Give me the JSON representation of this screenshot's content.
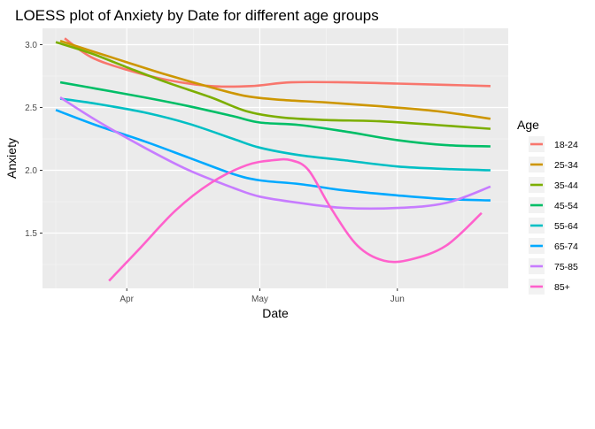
{
  "chart_data": {
    "type": "line",
    "title": "LOESS plot of Anxiety by Date for different age groups",
    "xlabel": "Date",
    "ylabel": "Anxiety",
    "x_ticks": [
      {
        "date": "2020-04-01",
        "label": "Apr"
      },
      {
        "date": "2020-05-01",
        "label": "May"
      },
      {
        "date": "2020-06-01",
        "label": "Jun"
      }
    ],
    "x_minor_ticks": [
      "2020-03-16",
      "2020-04-16",
      "2020-05-16",
      "2020-06-16"
    ],
    "xlim": [
      "2020-03-13",
      "2020-06-26"
    ],
    "y_ticks": [
      1.5,
      2.0,
      2.5,
      3.0
    ],
    "y_tick_labels": [
      "1.5",
      "2.0",
      "2.5",
      "3.0"
    ],
    "y_minor_ticks": [
      1.25,
      1.75,
      2.25,
      2.75
    ],
    "ylim": [
      1.06,
      3.13
    ],
    "grid": true,
    "legend_title": "Age",
    "legend_position": "right",
    "series": [
      {
        "name": "18-24",
        "color": "#F8766D",
        "x": [
          "2020-03-18",
          "2020-03-24",
          "2020-04-01",
          "2020-04-10",
          "2020-04-20",
          "2020-04-29",
          "2020-05-08",
          "2020-05-20",
          "2020-06-01",
          "2020-06-12",
          "2020-06-22"
        ],
        "y": [
          3.05,
          2.9,
          2.8,
          2.72,
          2.67,
          2.67,
          2.7,
          2.7,
          2.69,
          2.68,
          2.67
        ]
      },
      {
        "name": "25-34",
        "color": "#CD9600",
        "x": [
          "2020-03-17",
          "2020-03-24",
          "2020-04-01",
          "2020-04-10",
          "2020-04-20",
          "2020-04-28",
          "2020-05-06",
          "2020-05-16",
          "2020-05-28",
          "2020-06-10",
          "2020-06-22"
        ],
        "y": [
          3.03,
          2.95,
          2.86,
          2.76,
          2.66,
          2.59,
          2.56,
          2.54,
          2.51,
          2.47,
          2.41
        ]
      },
      {
        "name": "35-44",
        "color": "#7CAE00",
        "x": [
          "2020-03-16",
          "2020-03-24",
          "2020-04-01",
          "2020-04-10",
          "2020-04-20",
          "2020-04-28",
          "2020-05-06",
          "2020-05-16",
          "2020-05-28",
          "2020-06-10",
          "2020-06-22"
        ],
        "y": [
          3.02,
          2.93,
          2.82,
          2.7,
          2.58,
          2.47,
          2.42,
          2.4,
          2.39,
          2.36,
          2.33
        ]
      },
      {
        "name": "45-54",
        "color": "#00BE67",
        "x": [
          "2020-03-17",
          "2020-03-25",
          "2020-04-05",
          "2020-04-15",
          "2020-04-25",
          "2020-05-01",
          "2020-05-10",
          "2020-05-20",
          "2020-06-01",
          "2020-06-12",
          "2020-06-22"
        ],
        "y": [
          2.7,
          2.65,
          2.58,
          2.51,
          2.43,
          2.38,
          2.36,
          2.31,
          2.24,
          2.2,
          2.19
        ]
      },
      {
        "name": "55-64",
        "color": "#00BFC4",
        "x": [
          "2020-03-17",
          "2020-03-25",
          "2020-04-05",
          "2020-04-15",
          "2020-04-25",
          "2020-05-01",
          "2020-05-10",
          "2020-05-20",
          "2020-06-01",
          "2020-06-12",
          "2020-06-22"
        ],
        "y": [
          2.57,
          2.53,
          2.46,
          2.37,
          2.25,
          2.18,
          2.12,
          2.08,
          2.03,
          2.01,
          2.0
        ]
      },
      {
        "name": "65-74",
        "color": "#00A9FF",
        "x": [
          "2020-03-16",
          "2020-03-25",
          "2020-04-05",
          "2020-04-15",
          "2020-04-25",
          "2020-05-01",
          "2020-05-10",
          "2020-05-20",
          "2020-06-01",
          "2020-06-12",
          "2020-06-22"
        ],
        "y": [
          2.48,
          2.36,
          2.23,
          2.1,
          1.97,
          1.92,
          1.89,
          1.84,
          1.8,
          1.77,
          1.76
        ]
      },
      {
        "name": "75-85",
        "color": "#C77CFF",
        "x": [
          "2020-03-17",
          "2020-03-25",
          "2020-04-05",
          "2020-04-15",
          "2020-04-25",
          "2020-05-01",
          "2020-05-10",
          "2020-05-20",
          "2020-06-01",
          "2020-06-12",
          "2020-06-22"
        ],
        "y": [
          2.58,
          2.4,
          2.18,
          2.0,
          1.86,
          1.79,
          1.74,
          1.7,
          1.7,
          1.74,
          1.87
        ]
      },
      {
        "name": "85+",
        "color": "#FF61CC",
        "x": [
          "2020-03-28",
          "2020-04-04",
          "2020-04-12",
          "2020-04-20",
          "2020-04-28",
          "2020-05-04",
          "2020-05-08",
          "2020-05-12",
          "2020-05-17",
          "2020-05-23",
          "2020-05-29",
          "2020-06-04",
          "2020-06-12",
          "2020-06-20"
        ],
        "y": [
          1.12,
          1.38,
          1.68,
          1.9,
          2.04,
          2.08,
          2.08,
          2.0,
          1.7,
          1.4,
          1.28,
          1.29,
          1.4,
          1.66
        ]
      }
    ]
  }
}
